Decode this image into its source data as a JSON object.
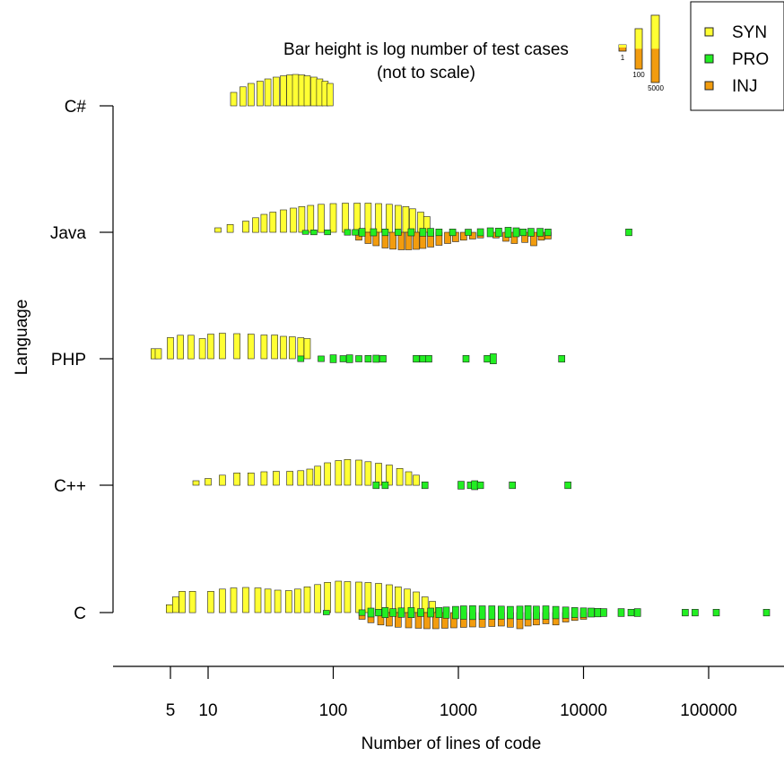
{
  "chart_data": {
    "type": "bar",
    "title": "",
    "annotation": [
      "Bar height is log number of test cases",
      "(not to scale)"
    ],
    "scale_legend": {
      "labels": [
        "1",
        "100",
        "5000"
      ],
      "counts": [
        1,
        100,
        5000
      ]
    },
    "xlabel": "Number of lines of code",
    "ylabel": "Language",
    "x_scale": "log10",
    "xlim": [
      2.5,
      350000
    ],
    "x_ticks": [
      {
        "value": 5,
        "label": "5"
      },
      {
        "value": 10,
        "label": "10"
      },
      {
        "value": 100,
        "label": "100"
      },
      {
        "value": 1000,
        "label": "1000"
      },
      {
        "value": 10000,
        "label": "10000"
      },
      {
        "value": 100000,
        "label": "100000"
      }
    ],
    "categories": [
      "C",
      "C++",
      "PHP",
      "Java",
      "C#"
    ],
    "legend": {
      "position": "top-right",
      "entries": [
        {
          "label": "SYN",
          "color": "#ffff33"
        },
        {
          "label": "PRO",
          "color": "#22ee22"
        },
        {
          "label": "INJ",
          "color": "#f29c0e"
        }
      ]
    },
    "colors": {
      "SYN": "#ffff33",
      "PRO": "#22ee22",
      "INJ": "#f29c0e",
      "outline": "#222222"
    },
    "series": [
      {
        "language": "C#",
        "kind": "SYN",
        "direction": "up",
        "points": [
          [
            16,
            0.6
          ],
          [
            19,
            0.85
          ],
          [
            22,
            1.0
          ],
          [
            26,
            1.1
          ],
          [
            30,
            1.2
          ],
          [
            35,
            1.28
          ],
          [
            40,
            1.34
          ],
          [
            45,
            1.38
          ],
          [
            50,
            1.4
          ],
          [
            56,
            1.38
          ],
          [
            62,
            1.34
          ],
          [
            70,
            1.28
          ],
          [
            78,
            1.2
          ],
          [
            86,
            1.1
          ],
          [
            94,
            1.0
          ]
        ]
      },
      {
        "language": "Java",
        "kind": "SYN",
        "direction": "up",
        "points": [
          [
            12,
            0.2
          ],
          [
            15,
            0.35
          ],
          [
            20,
            0.5
          ],
          [
            24,
            0.65
          ],
          [
            28,
            0.8
          ],
          [
            33,
            0.9
          ],
          [
            40,
            1.0
          ],
          [
            48,
            1.08
          ],
          [
            56,
            1.15
          ],
          [
            66,
            1.2
          ],
          [
            80,
            1.25
          ],
          [
            100,
            1.28
          ],
          [
            125,
            1.3
          ],
          [
            155,
            1.3
          ],
          [
            190,
            1.3
          ],
          [
            230,
            1.28
          ],
          [
            280,
            1.25
          ],
          [
            330,
            1.2
          ],
          [
            380,
            1.15
          ],
          [
            430,
            1.05
          ],
          [
            500,
            0.9
          ],
          [
            560,
            0.7
          ]
        ]
      },
      {
        "language": "Java",
        "kind": "INJ",
        "direction": "down",
        "points": [
          [
            160,
            0.35
          ],
          [
            190,
            0.5
          ],
          [
            220,
            0.6
          ],
          [
            260,
            0.7
          ],
          [
            300,
            0.75
          ],
          [
            350,
            0.78
          ],
          [
            400,
            0.78
          ],
          [
            460,
            0.76
          ],
          [
            520,
            0.72
          ],
          [
            600,
            0.66
          ],
          [
            700,
            0.58
          ],
          [
            820,
            0.5
          ],
          [
            950,
            0.42
          ],
          [
            1100,
            0.35
          ],
          [
            1300,
            0.3
          ],
          [
            1500,
            0.25
          ],
          [
            2000,
            0.25
          ],
          [
            2400,
            0.4
          ],
          [
            2800,
            0.5
          ],
          [
            3400,
            0.45
          ],
          [
            4000,
            0.6
          ],
          [
            4600,
            0.35
          ],
          [
            5200,
            0.3
          ]
        ]
      },
      {
        "language": "Java",
        "kind": "PRO",
        "direction": "mid",
        "points": [
          [
            60,
            0.18
          ],
          [
            70,
            0.22
          ],
          [
            90,
            0.22
          ],
          [
            130,
            0.25
          ],
          [
            150,
            0.25
          ],
          [
            170,
            0.35
          ],
          [
            210,
            0.32
          ],
          [
            260,
            0.3
          ],
          [
            330,
            0.28
          ],
          [
            420,
            0.32
          ],
          [
            520,
            0.35
          ],
          [
            600,
            0.35
          ],
          [
            700,
            0.3
          ],
          [
            900,
            0.3
          ],
          [
            1200,
            0.28
          ],
          [
            1500,
            0.32
          ],
          [
            1800,
            0.4
          ],
          [
            2100,
            0.38
          ],
          [
            2500,
            0.45
          ],
          [
            2900,
            0.4
          ],
          [
            3300,
            0.3
          ],
          [
            3800,
            0.35
          ],
          [
            4500,
            0.35
          ],
          [
            5200,
            0.3
          ],
          [
            23000,
            0.3
          ]
        ]
      },
      {
        "language": "PHP",
        "kind": "SYN",
        "direction": "up",
        "points": [
          [
            3.7,
            0.45
          ],
          [
            4.0,
            0.45
          ],
          [
            5.0,
            0.95
          ],
          [
            6.0,
            1.05
          ],
          [
            7.3,
            1.05
          ],
          [
            9,
            0.9
          ],
          [
            10.5,
            1.1
          ],
          [
            13,
            1.14
          ],
          [
            17,
            1.12
          ],
          [
            22,
            1.1
          ],
          [
            28,
            1.06
          ],
          [
            34,
            1.06
          ],
          [
            40,
            1.0
          ],
          [
            47,
            0.98
          ],
          [
            55,
            0.94
          ],
          [
            62,
            0.9
          ]
        ]
      },
      {
        "language": "PHP",
        "kind": "PRO",
        "direction": "mid",
        "points": [
          [
            55,
            0.25
          ],
          [
            80,
            0.25
          ],
          [
            100,
            0.35
          ],
          [
            120,
            0.28
          ],
          [
            135,
            0.35
          ],
          [
            160,
            0.28
          ],
          [
            190,
            0.3
          ],
          [
            220,
            0.32
          ],
          [
            250,
            0.3
          ],
          [
            460,
            0.3
          ],
          [
            520,
            0.3
          ],
          [
            580,
            0.3
          ],
          [
            1150,
            0.3
          ],
          [
            1700,
            0.3
          ],
          [
            1900,
            0.45
          ],
          [
            6700,
            0.3
          ]
        ]
      },
      {
        "language": "C++",
        "kind": "SYN",
        "direction": "up",
        "points": [
          [
            8,
            0.2
          ],
          [
            10,
            0.3
          ],
          [
            13,
            0.45
          ],
          [
            17,
            0.55
          ],
          [
            22,
            0.55
          ],
          [
            28,
            0.6
          ],
          [
            35,
            0.62
          ],
          [
            45,
            0.62
          ],
          [
            55,
            0.65
          ],
          [
            65,
            0.72
          ],
          [
            75,
            0.85
          ],
          [
            90,
            1.0
          ],
          [
            110,
            1.1
          ],
          [
            130,
            1.15
          ],
          [
            160,
            1.12
          ],
          [
            190,
            1.05
          ],
          [
            230,
            0.98
          ],
          [
            280,
            0.9
          ],
          [
            340,
            0.75
          ],
          [
            400,
            0.6
          ],
          [
            460,
            0.45
          ]
        ]
      },
      {
        "language": "C++",
        "kind": "PRO",
        "direction": "mid",
        "points": [
          [
            220,
            0.3
          ],
          [
            260,
            0.3
          ],
          [
            540,
            0.3
          ],
          [
            1050,
            0.35
          ],
          [
            1250,
            0.3
          ],
          [
            1350,
            0.4
          ],
          [
            1500,
            0.3
          ],
          [
            2700,
            0.3
          ],
          [
            7500,
            0.3
          ]
        ]
      },
      {
        "language": "C",
        "kind": "SYN",
        "direction": "up",
        "points": [
          [
            4.9,
            0.35
          ],
          [
            5.5,
            0.7
          ],
          [
            6.2,
            0.95
          ],
          [
            7.5,
            0.95
          ],
          [
            10.5,
            0.95
          ],
          [
            13,
            1.05
          ],
          [
            16,
            1.1
          ],
          [
            20,
            1.12
          ],
          [
            25,
            1.1
          ],
          [
            30,
            1.05
          ],
          [
            36,
            1.0
          ],
          [
            44,
            0.98
          ],
          [
            52,
            1.05
          ],
          [
            62,
            1.15
          ],
          [
            75,
            1.25
          ],
          [
            90,
            1.35
          ],
          [
            110,
            1.4
          ],
          [
            130,
            1.38
          ],
          [
            160,
            1.36
          ],
          [
            190,
            1.34
          ],
          [
            230,
            1.3
          ],
          [
            280,
            1.24
          ],
          [
            330,
            1.15
          ],
          [
            390,
            1.05
          ],
          [
            460,
            0.92
          ],
          [
            540,
            0.7
          ],
          [
            620,
            0.5
          ]
        ]
      },
      {
        "language": "C",
        "kind": "INJ",
        "direction": "down",
        "points": [
          [
            170,
            0.3
          ],
          [
            200,
            0.45
          ],
          [
            240,
            0.55
          ],
          [
            280,
            0.6
          ],
          [
            330,
            0.65
          ],
          [
            400,
            0.68
          ],
          [
            480,
            0.7
          ],
          [
            560,
            0.72
          ],
          [
            660,
            0.72
          ],
          [
            780,
            0.7
          ],
          [
            920,
            0.68
          ],
          [
            1100,
            0.66
          ],
          [
            1300,
            0.64
          ],
          [
            1550,
            0.65
          ],
          [
            1850,
            0.62
          ],
          [
            2200,
            0.6
          ],
          [
            2600,
            0.65
          ],
          [
            3100,
            0.72
          ],
          [
            3600,
            0.6
          ],
          [
            4200,
            0.55
          ],
          [
            5000,
            0.5
          ],
          [
            6000,
            0.55
          ],
          [
            7200,
            0.42
          ],
          [
            8500,
            0.35
          ],
          [
            10000,
            0.3
          ]
        ]
      },
      {
        "language": "C",
        "kind": "PRO",
        "direction": "mid",
        "points": [
          [
            88,
            0.2
          ],
          [
            170,
            0.25
          ],
          [
            200,
            0.4
          ],
          [
            230,
            0.3
          ],
          [
            260,
            0.45
          ],
          [
            300,
            0.35
          ],
          [
            350,
            0.42
          ],
          [
            420,
            0.45
          ],
          [
            500,
            0.35
          ],
          [
            600,
            0.4
          ],
          [
            700,
            0.45
          ],
          [
            800,
            0.5
          ],
          [
            950,
            0.55
          ],
          [
            1100,
            0.6
          ],
          [
            1300,
            0.62
          ],
          [
            1550,
            0.6
          ],
          [
            1850,
            0.6
          ],
          [
            2200,
            0.58
          ],
          [
            2600,
            0.55
          ],
          [
            3100,
            0.58
          ],
          [
            3600,
            0.62
          ],
          [
            4200,
            0.58
          ],
          [
            5000,
            0.6
          ],
          [
            6000,
            0.55
          ],
          [
            7200,
            0.5
          ],
          [
            8500,
            0.45
          ],
          [
            10000,
            0.42
          ],
          [
            11500,
            0.4
          ],
          [
            13000,
            0.38
          ],
          [
            14500,
            0.35
          ],
          [
            20000,
            0.35
          ],
          [
            24000,
            0.3
          ],
          [
            27000,
            0.35
          ],
          [
            65000,
            0.3
          ],
          [
            78000,
            0.3
          ],
          [
            115000,
            0.3
          ],
          [
            290000,
            0.3
          ]
        ]
      }
    ]
  }
}
